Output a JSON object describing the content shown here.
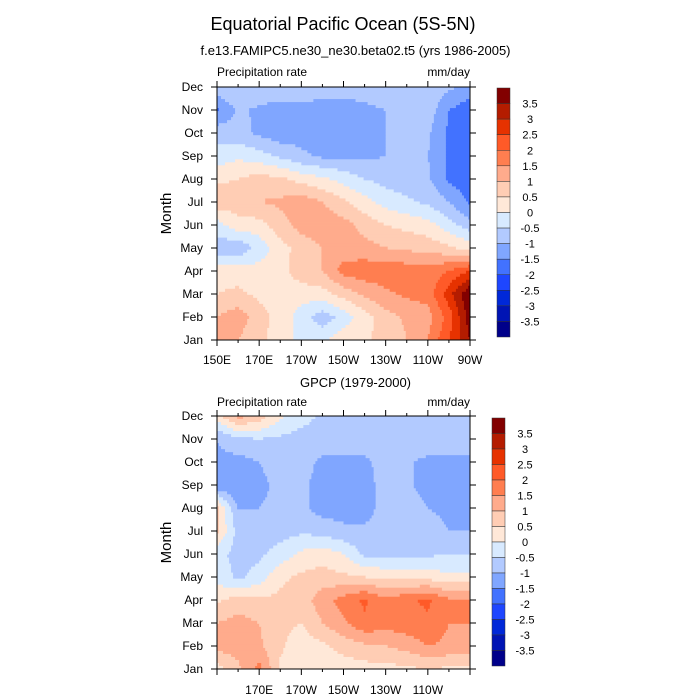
{
  "title": "Equatorial Pacific Ocean (5S-5N)",
  "colors": [
    "#00008a",
    "#0014b4",
    "#0028d8",
    "#1e46ff",
    "#4272ff",
    "#80a6ff",
    "#b2caff",
    "#d8eaff",
    "#ffe8d8",
    "#ffcdb4",
    "#ffab8c",
    "#ff7e50",
    "#ff5a28",
    "#e63200",
    "#b41c00",
    "#820000"
  ],
  "chart_data": [
    {
      "type": "heatmap",
      "subtitle": "f.e13.FAMIPC5.ne30_ne30.beta02.t5 (yrs 1986-2005)",
      "left_label": "Precipitation rate",
      "right_label": "mm/day",
      "ylabel": "Month",
      "yticks": [
        "Jan",
        "Feb",
        "Mar",
        "Apr",
        "May",
        "Jun",
        "Jul",
        "Aug",
        "Sep",
        "Oct",
        "Nov",
        "Dec"
      ],
      "xticks": [
        "150E",
        "170E",
        "170W",
        "150W",
        "130W",
        "110W",
        "90W"
      ],
      "xtick_lons": [
        150,
        170,
        190,
        210,
        230,
        250,
        270
      ],
      "xlim": [
        150,
        270
      ],
      "lons": [
        150,
        155,
        160,
        165,
        170,
        175,
        180,
        185,
        190,
        195,
        200,
        205,
        210,
        215,
        220,
        225,
        230,
        235,
        240,
        245,
        250,
        255,
        260,
        265,
        270
      ],
      "levels": [
        -3.5,
        -3,
        -2.5,
        -2,
        -1.5,
        -1,
        -0.5,
        0,
        0.5,
        1,
        1.5,
        2,
        2.5,
        3,
        3.5
      ],
      "colorbar_labels": [
        "3.5",
        "3",
        "2.5",
        "2",
        "1.5",
        "1",
        "0.5",
        "0",
        "-0.5",
        "-1",
        "-1.5",
        "-2",
        "-2.5",
        "-3",
        "-3.5"
      ],
      "values_by_month_coarse_lon_step10": [
        [
          1.2,
          1.0,
          0.6,
          0.3,
          -0.2,
          -0.1,
          0.3,
          0.45,
          0.6,
          1.0,
          1.5,
          2.5,
          3.5
        ],
        [
          1.0,
          1.3,
          0.7,
          0.3,
          -0.2,
          -0.8,
          -0.3,
          0.3,
          0.8,
          1.1,
          1.3,
          2.2,
          3.8
        ],
        [
          0.5,
          0.6,
          0.4,
          0.3,
          0.2,
          0.3,
          0.7,
          1.1,
          1.4,
          1.6,
          1.7,
          2.8,
          4.0
        ],
        [
          0.3,
          0.3,
          0.2,
          0.3,
          0.8,
          1.0,
          1.7,
          1.8,
          1.8,
          1.8,
          1.7,
          2.0,
          2.5
        ],
        [
          -0.8,
          -0.9,
          -0.3,
          0.3,
          0.7,
          1.0,
          1.2,
          1.2,
          1.0,
          0.9,
          0.8,
          0.6,
          0.3
        ],
        [
          -0.2,
          0.3,
          0.3,
          0.8,
          1.2,
          1.3,
          1.2,
          0.8,
          0.5,
          0.35,
          0.2,
          -0.3,
          -0.8
        ],
        [
          0.8,
          0.8,
          1.0,
          1.1,
          1.3,
          1.0,
          0.6,
          0.2,
          -0.2,
          -0.4,
          -0.6,
          -1.0,
          -1.6
        ],
        [
          0.4,
          0.5,
          0.7,
          0.6,
          0.3,
          0.1,
          -0.2,
          -0.5,
          -0.7,
          -0.8,
          -0.9,
          -1.6,
          -1.8
        ],
        [
          -0.3,
          -0.1,
          -0.3,
          -0.6,
          -0.9,
          -1.1,
          -1.1,
          -1.1,
          -1.0,
          -1.0,
          -1.0,
          -1.6,
          -1.8
        ],
        [
          -0.7,
          -0.8,
          -1.1,
          -1.3,
          -1.2,
          -1.2,
          -1.1,
          -1.1,
          -1.0,
          -0.95,
          -0.9,
          -1.6,
          -1.8
        ],
        [
          -1.6,
          -0.9,
          -1.1,
          -1.2,
          -1.1,
          -1.1,
          -1.2,
          -1.1,
          -1.0,
          -0.85,
          -0.7,
          -1.5,
          -1.8
        ],
        [
          -0.6,
          -0.5,
          -0.6,
          -0.7,
          -0.8,
          -0.9,
          -0.8,
          -0.8,
          -0.7,
          -0.65,
          -0.6,
          -0.9,
          -1.2
        ]
      ]
    },
    {
      "type": "heatmap",
      "subtitle": "GPCP (1979-2000)",
      "left_label": "Precipitation rate",
      "right_label": "mm/day",
      "ylabel": "Month",
      "yticks": [
        "Jan",
        "Feb",
        "Mar",
        "Apr",
        "May",
        "Jun",
        "Jul",
        "Aug",
        "Sep",
        "Oct",
        "Nov",
        "Dec"
      ],
      "xticks": [
        "170E",
        "170W",
        "150W",
        "130W",
        "110W"
      ],
      "xtick_lons": [
        170,
        190,
        210,
        230,
        250
      ],
      "xlim": [
        150,
        270
      ],
      "levels": [
        -3.5,
        -3,
        -2.5,
        -2,
        -1.5,
        -1,
        -0.5,
        0,
        0.5,
        1,
        1.5,
        2,
        2.5,
        3,
        3.5
      ],
      "colorbar_labels": [
        "3.5",
        "3",
        "2.5",
        "2",
        "1.5",
        "1",
        "0.5",
        "0",
        "-0.5",
        "-1",
        "-1.5",
        "-2",
        "-2.5",
        "-3",
        "-3.5"
      ],
      "values_by_month_coarse_lon_step10": [
        [
          0.3,
          0.9,
          1.7,
          0.4,
          0.2,
          0.2,
          0.2,
          0.3,
          0.3,
          0.4,
          0.5,
          0.4,
          0.4
        ],
        [
          1.2,
          1.2,
          1.1,
          0.6,
          0.2,
          0.4,
          0.7,
          0.9,
          1.0,
          1.2,
          1.5,
          1.4,
          1.4
        ],
        [
          1.0,
          1.2,
          1.0,
          0.6,
          0.5,
          1.0,
          1.4,
          1.9,
          1.7,
          1.8,
          1.9,
          1.5,
          1.5
        ],
        [
          0.4,
          0.7,
          0.6,
          0.6,
          0.7,
          1.3,
          1.7,
          2.1,
          1.6,
          1.9,
          2.1,
          1.6,
          1.6
        ],
        [
          -0.2,
          -0.6,
          -0.3,
          0.4,
          0.6,
          0.7,
          0.6,
          0.5,
          0.4,
          0.35,
          0.3,
          0.1,
          0.1
        ],
        [
          -0.3,
          -0.7,
          -0.6,
          -0.3,
          0.1,
          0.3,
          0.0,
          -0.6,
          -0.7,
          -0.65,
          -0.6,
          -0.5,
          -0.5
        ],
        [
          0.6,
          -0.7,
          -0.7,
          -0.7,
          -0.6,
          -0.7,
          -0.9,
          -0.9,
          -0.9,
          -0.85,
          -0.8,
          -1.0,
          -1.0
        ],
        [
          0.6,
          -1.0,
          -1.0,
          -0.9,
          -0.9,
          -1.2,
          -1.2,
          -1.2,
          -0.8,
          -0.9,
          -1.0,
          -1.1,
          -1.1
        ],
        [
          -1.4,
          -1.5,
          -1.1,
          -0.9,
          -0.9,
          -1.2,
          -1.3,
          -1.2,
          -0.8,
          -0.95,
          -1.1,
          -1.2,
          -1.2
        ],
        [
          -1.1,
          -1.2,
          -1.0,
          -0.8,
          -0.8,
          -1.1,
          -1.1,
          -1.1,
          -0.8,
          -0.95,
          -1.1,
          -1.1,
          -1.1
        ],
        [
          -1.0,
          -0.6,
          -0.5,
          -0.6,
          -0.7,
          -0.7,
          -0.7,
          -0.7,
          -0.7,
          -0.7,
          -0.7,
          -0.7,
          -0.7
        ],
        [
          0.3,
          1.2,
          0.8,
          0.1,
          -0.3,
          -0.6,
          -0.7,
          -0.7,
          -0.7,
          -0.7,
          -0.7,
          -0.7,
          -0.7
        ]
      ]
    }
  ]
}
